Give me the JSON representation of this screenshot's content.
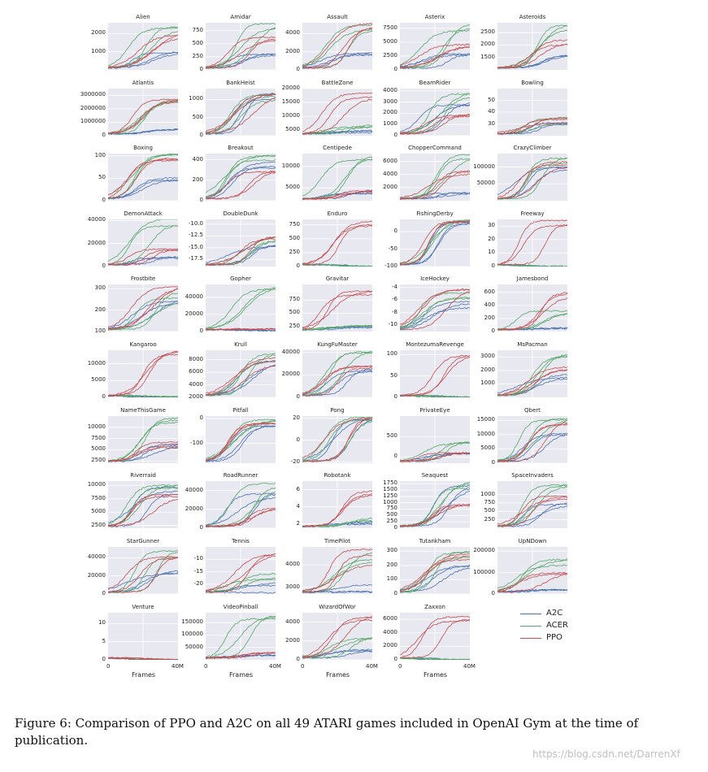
{
  "chart_data": {
    "type": "line",
    "x_label": "Frames",
    "x_ticks": [
      "0",
      "40M"
    ],
    "colors": {
      "A2C": "#4c72b0",
      "ACER": "#55a868",
      "PPO": "#c44e52"
    },
    "legend": {
      "placement": "bottom-right",
      "entries": [
        "A2C",
        "ACER",
        "PPO"
      ]
    },
    "panels": [
      {
        "title": "Alien",
        "yticks": [
          "1000",
          "2000"
        ],
        "ymin": 0,
        "ymax": 2600,
        "final": {
          "A2C": 1000,
          "ACER": 2300,
          "PPO": 2000
        }
      },
      {
        "title": "Amidar",
        "yticks": [
          "0",
          "250",
          "500",
          "750"
        ],
        "ymin": 0,
        "ymax": 900,
        "final": {
          "A2C": 300,
          "ACER": 850,
          "PPO": 650
        }
      },
      {
        "title": "Assault",
        "yticks": [
          "0",
          "2000",
          "4000"
        ],
        "ymin": 0,
        "ymax": 5200,
        "final": {
          "A2C": 1800,
          "ACER": 4800,
          "PPO": 4900
        }
      },
      {
        "title": "Asterix",
        "yticks": [
          "0",
          "2500",
          "5000",
          "7500"
        ],
        "ymin": 0,
        "ymax": 8500,
        "final": {
          "A2C": 3000,
          "ACER": 8000,
          "PPO": 4500
        }
      },
      {
        "title": "Asteroids",
        "yticks": [
          "1500",
          "2000",
          "2500"
        ],
        "ymin": 1000,
        "ymax": 2900,
        "final": {
          "A2C": 1700,
          "ACER": 2700,
          "PPO": 2100
        }
      },
      {
        "title": "Atlantis",
        "yticks": [
          "0",
          "1000000",
          "2000000",
          "3000000"
        ],
        "ymin": 0,
        "ymax": 3500000,
        "final": {
          "A2C": 500000,
          "ACER": 2500000,
          "PPO": 2800000
        }
      },
      {
        "title": "BankHeist",
        "yticks": [
          "0",
          "500",
          "1000"
        ],
        "ymin": 0,
        "ymax": 1300,
        "final": {
          "A2C": 1100,
          "ACER": 1100,
          "PPO": 1250
        }
      },
      {
        "title": "BattleZone",
        "yticks": [
          "5000",
          "10000",
          "15000",
          "20000"
        ],
        "ymin": 3000,
        "ymax": 20000,
        "final": {
          "A2C": 4500,
          "ACER": 6500,
          "PPO": 17000
        }
      },
      {
        "title": "BeamRider",
        "yticks": [
          "0",
          "1000",
          "2000",
          "3000",
          "4000"
        ],
        "ymin": 0,
        "ymax": 4200,
        "final": {
          "A2C": 3000,
          "ACER": 3800,
          "PPO": 1800
        }
      },
      {
        "title": "Bowling",
        "yticks": [
          "30",
          "40",
          "50"
        ],
        "ymin": 20,
        "ymax": 60,
        "final": {
          "A2C": 32,
          "ACER": 34,
          "PPO": 35
        }
      },
      {
        "title": "Boxing",
        "yticks": [
          "0",
          "50",
          "100"
        ],
        "ymin": 0,
        "ymax": 105,
        "final": {
          "A2C": 50,
          "ACER": 98,
          "PPO": 96
        }
      },
      {
        "title": "Breakout",
        "yticks": [
          "0",
          "200",
          "400"
        ],
        "ymin": 0,
        "ymax": 460,
        "final": {
          "A2C": 360,
          "ACER": 430,
          "PPO": 300
        }
      },
      {
        "title": "Centipede",
        "yticks": [
          "5000",
          "10000"
        ],
        "ymin": 2000,
        "ymax": 13000,
        "final": {
          "A2C": 4000,
          "ACER": 12000,
          "PPO": 4500
        }
      },
      {
        "title": "ChopperCommand",
        "yticks": [
          "2000",
          "4000",
          "6000"
        ],
        "ymin": 0,
        "ymax": 7200,
        "final": {
          "A2C": 1200,
          "ACER": 6800,
          "PPO": 4200
        }
      },
      {
        "title": "CrazyClimber",
        "yticks": [
          "50000",
          "100000"
        ],
        "ymin": 0,
        "ymax": 140000,
        "final": {
          "A2C": 100000,
          "ACER": 120000,
          "PPO": 110000
        }
      },
      {
        "title": "DemonAttack",
        "yticks": [
          "0",
          "20000",
          "40000"
        ],
        "ymin": 0,
        "ymax": 41000,
        "final": {
          "A2C": 8000,
          "ACER": 40000,
          "PPO": 15000
        }
      },
      {
        "title": "DoubleDunk",
        "yticks": [
          "-17.5",
          "-15.0",
          "-12.5",
          "-10.0"
        ],
        "ymin": -19,
        "ymax": -9,
        "final": {
          "A2C": -16,
          "ACER": -13,
          "PPO": -13
        }
      },
      {
        "title": "Enduro",
        "yticks": [
          "0",
          "250",
          "500",
          "750"
        ],
        "ymin": 0,
        "ymax": 850,
        "final": {
          "A2C": 0,
          "ACER": 0,
          "PPO": 780
        }
      },
      {
        "title": "FishingDerby",
        "yticks": [
          "-100",
          "-50",
          "0"
        ],
        "ymin": -100,
        "ymax": 35,
        "final": {
          "A2C": 25,
          "ACER": 32,
          "PPO": 30
        }
      },
      {
        "title": "Freeway",
        "yticks": [
          "0",
          "10",
          "20",
          "30"
        ],
        "ymin": 0,
        "ymax": 35,
        "final": {
          "A2C": 0,
          "ACER": 0,
          "PPO": 32
        }
      },
      {
        "title": "Frostbite",
        "yticks": [
          "100",
          "200",
          "300"
        ],
        "ymin": 100,
        "ymax": 320,
        "final": {
          "A2C": 260,
          "ACER": 270,
          "PPO": 310
        }
      },
      {
        "title": "Gopher",
        "yticks": [
          "0",
          "20000",
          "40000"
        ],
        "ymin": 0,
        "ymax": 55000,
        "final": {
          "A2C": 1000,
          "ACER": 50000,
          "PPO": 3000
        }
      },
      {
        "title": "Gravitar",
        "yticks": [
          "250",
          "500",
          "750"
        ],
        "ymin": 150,
        "ymax": 1050,
        "final": {
          "A2C": 250,
          "ACER": 250,
          "PPO": 950
        }
      },
      {
        "title": "IceHockey",
        "yticks": [
          "-10",
          "-8",
          "-6",
          "-4"
        ],
        "ymin": -11,
        "ymax": -3.5,
        "final": {
          "A2C": -7,
          "ACER": -5.5,
          "PPO": -4.5
        }
      },
      {
        "title": "Jamesbond",
        "yticks": [
          "0",
          "200",
          "400",
          "600"
        ],
        "ymin": 0,
        "ymax": 720,
        "final": {
          "A2C": 50,
          "ACER": 300,
          "PPO": 600
        }
      },
      {
        "title": "Kangaroo",
        "yticks": [
          "0",
          "5000",
          "10000"
        ],
        "ymin": 0,
        "ymax": 14000,
        "final": {
          "A2C": 50,
          "ACER": 100,
          "PPO": 13000
        }
      },
      {
        "title": "Krull",
        "yticks": [
          "2000",
          "4000",
          "6000",
          "8000"
        ],
        "ymin": 2000,
        "ymax": 9500,
        "final": {
          "A2C": 8000,
          "ACER": 8500,
          "PPO": 8000
        }
      },
      {
        "title": "KungFuMaster",
        "yticks": [
          "0",
          "20000",
          "40000"
        ],
        "ymin": 0,
        "ymax": 42000,
        "final": {
          "A2C": 25000,
          "ACER": 38000,
          "PPO": 28000
        }
      },
      {
        "title": "MontezumaRevenge",
        "yticks": [
          "0",
          "50",
          "100"
        ],
        "ymin": 0,
        "ymax": 110,
        "final": {
          "A2C": 0,
          "ACER": 0,
          "PPO": 100
        }
      },
      {
        "title": "MsPacman",
        "yticks": [
          "1000",
          "2000",
          "3000"
        ],
        "ymin": 0,
        "ymax": 3500,
        "final": {
          "A2C": 1600,
          "ACER": 3100,
          "PPO": 2200
        }
      },
      {
        "title": "NameThisGame",
        "yticks": [
          "2500",
          "5000",
          "7500",
          "10000"
        ],
        "ymin": 2000,
        "ymax": 12500,
        "final": {
          "A2C": 6000,
          "ACER": 11500,
          "PPO": 6200
        }
      },
      {
        "title": "Pitfall",
        "yticks": [
          "-100",
          "0"
        ],
        "ymin": -180,
        "ymax": 10,
        "final": {
          "A2C": -30,
          "ACER": -5,
          "PPO": -20
        }
      },
      {
        "title": "Pong",
        "yticks": [
          "-20",
          "0",
          "20"
        ],
        "ymin": -21,
        "ymax": 22,
        "final": {
          "A2C": 20,
          "ACER": 20,
          "PPO": 21
        }
      },
      {
        "title": "PrivateEye",
        "yticks": [
          "0",
          "500"
        ],
        "ymin": -150,
        "ymax": 1000,
        "final": {
          "A2C": 90,
          "ACER": 350,
          "PPO": 100
        }
      },
      {
        "title": "Qbert",
        "yticks": [
          "0",
          "5000",
          "10000",
          "15000"
        ],
        "ymin": 0,
        "ymax": 16500,
        "final": {
          "A2C": 11000,
          "ACER": 15000,
          "PPO": 14000
        }
      },
      {
        "title": "Riverraid",
        "yticks": [
          "2500",
          "5000",
          "7500",
          "10000"
        ],
        "ymin": 2000,
        "ymax": 10800,
        "final": {
          "A2C": 9000,
          "ACER": 9500,
          "PPO": 8500
        }
      },
      {
        "title": "RoadRunner",
        "yticks": [
          "0",
          "20000",
          "40000"
        ],
        "ymin": 0,
        "ymax": 50000,
        "final": {
          "A2C": 35000,
          "ACER": 45000,
          "PPO": 22000
        }
      },
      {
        "title": "Robotank",
        "yticks": [
          "2",
          "4",
          "6"
        ],
        "ymin": 1.5,
        "ymax": 7,
        "final": {
          "A2C": 2.2,
          "ACER": 2.5,
          "PPO": 5.5
        }
      },
      {
        "title": "Seaquest",
        "yticks": [
          "0",
          "250",
          "500",
          "750",
          "1000",
          "1250",
          "1500",
          "1750"
        ],
        "ymin": 0,
        "ymax": 1850,
        "final": {
          "A2C": 1700,
          "ACER": 1750,
          "PPO": 900
        }
      },
      {
        "title": "SpaceInvaders",
        "yticks": [
          "250",
          "500",
          "750",
          "1000"
        ],
        "ymin": 0,
        "ymax": 1400,
        "final": {
          "A2C": 750,
          "ACER": 1200,
          "PPO": 950
        }
      },
      {
        "title": "StarGunner",
        "yticks": [
          "0",
          "20000",
          "40000"
        ],
        "ymin": 0,
        "ymax": 52000,
        "final": {
          "A2C": 25000,
          "ACER": 45000,
          "PPO": 42000
        }
      },
      {
        "title": "Tennis",
        "yticks": [
          "-20",
          "-15",
          "-10"
        ],
        "ymin": -24,
        "ymax": -5,
        "final": {
          "A2C": -22,
          "ACER": -17,
          "PPO": -8
        }
      },
      {
        "title": "TimePilot",
        "yticks": [
          "3000",
          "4000"
        ],
        "ymin": 2700,
        "ymax": 4800,
        "final": {
          "A2C": 3000,
          "ACER": 4300,
          "PPO": 4500
        }
      },
      {
        "title": "Tutankham",
        "yticks": [
          "0",
          "100",
          "200",
          "300"
        ],
        "ymin": 0,
        "ymax": 330,
        "final": {
          "A2C": 200,
          "ACER": 280,
          "PPO": 270
        }
      },
      {
        "title": "UpNDown",
        "yticks": [
          "0",
          "100000",
          "200000"
        ],
        "ymin": 0,
        "ymax": 220000,
        "final": {
          "A2C": 20000,
          "ACER": 150000,
          "PPO": 100000
        }
      },
      {
        "title": "Venture",
        "yticks": [
          "0",
          "5",
          "10"
        ],
        "ymin": 0,
        "ymax": 13,
        "final": {
          "A2C": 0,
          "ACER": 0,
          "PPO": 0
        }
      },
      {
        "title": "VideoPinball",
        "yticks": [
          "50000",
          "100000",
          "150000"
        ],
        "ymin": 0,
        "ymax": 190000,
        "final": {
          "A2C": 20000,
          "ACER": 170000,
          "PPO": 30000
        }
      },
      {
        "title": "WizardOfWor",
        "yticks": [
          "0",
          "2000",
          "4000"
        ],
        "ymin": 0,
        "ymax": 5000,
        "final": {
          "A2C": 1000,
          "ACER": 2300,
          "PPO": 4600
        }
      },
      {
        "title": "Zaxxon",
        "yticks": [
          "0",
          "2000",
          "4000",
          "6000"
        ],
        "ymin": 0,
        "ymax": 7000,
        "final": {
          "A2C": 0,
          "ACER": 0,
          "PPO": 6500
        }
      }
    ]
  },
  "caption": "Figure 6: Comparison of PPO and A2C on all 49 ATARI games included in OpenAI Gym at the time of publication.",
  "watermark": "https://blog.csdn.net/DarrenXf"
}
